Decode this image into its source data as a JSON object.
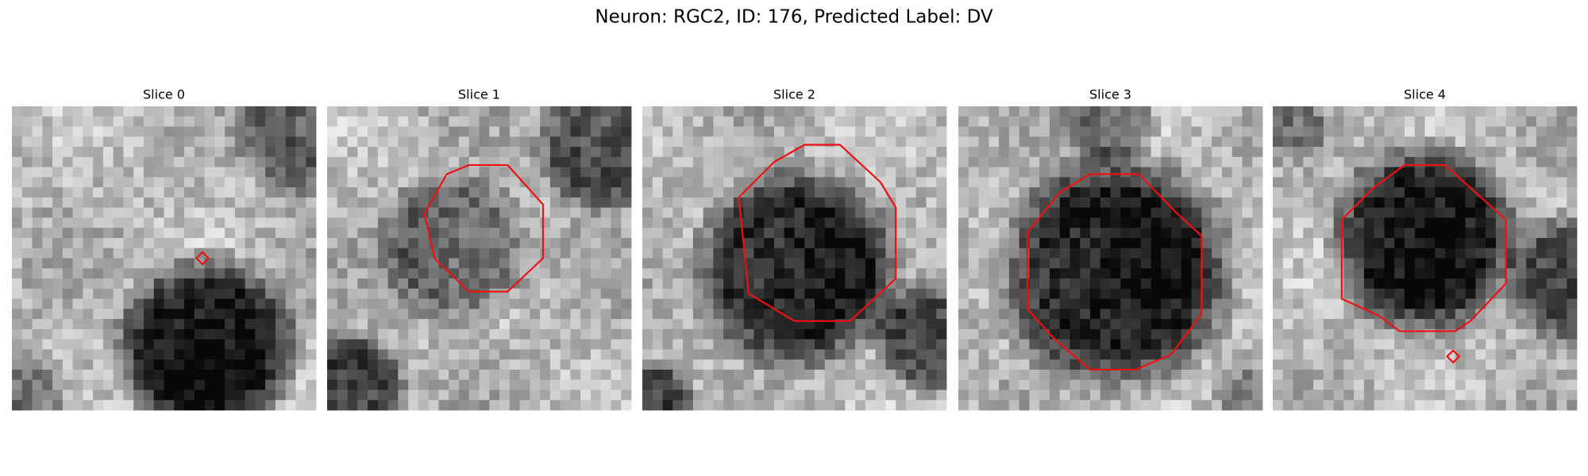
{
  "title": "Neuron: RGC2, ID: 176, Predicted Label: DV",
  "panels": [
    {
      "title": "Slice 0"
    },
    {
      "title": "Slice 1"
    },
    {
      "title": "Slice 2"
    },
    {
      "title": "Slice 3"
    },
    {
      "title": "Slice 4"
    }
  ]
}
